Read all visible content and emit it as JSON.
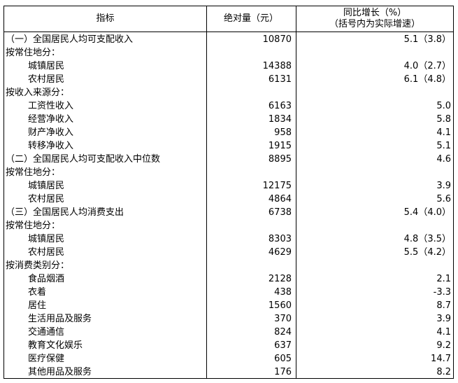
{
  "header": {
    "indicator": "指标",
    "absolute": "绝对量（元）",
    "growth": "同比增长（%）",
    "growth_note": "（括号内为实际增速）"
  },
  "table": {
    "rows": [
      [
        "（一）全国居民人均可支配收入",
        "10870",
        "5.1（3.8）"
      ],
      [
        "按常住地分："
      ],
      [
        "城镇居民",
        "14388",
        "4.0（2.7）"
      ],
      [
        "农村居民",
        "6131",
        "6.1（4.8）"
      ],
      [
        "按收入来源分："
      ],
      [
        "工资性收入",
        "6163",
        "5.0"
      ],
      [
        "经营净收入",
        "1834",
        "5.8"
      ],
      [
        "财产净收入",
        "958",
        "4.1"
      ],
      [
        "转移净收入",
        "1915",
        "5.1"
      ],
      [
        "（二）全国居民人均可支配收入中位数",
        "8895",
        "4.6"
      ],
      [
        "按常住地分："
      ],
      [
        "城镇居民",
        "12175",
        "3.9"
      ],
      [
        "农村居民",
        "4864",
        "5.6"
      ],
      [
        "（三）全国居民人均消费支出",
        "6738",
        "5.4（4.0）"
      ],
      [
        "按常住地分："
      ],
      [
        "城镇居民",
        "8303",
        "4.8（3.5）"
      ],
      [
        "农村居民",
        "4629",
        "5.5（4.2）"
      ],
      [
        "按消费类别分："
      ],
      [
        "食品烟酒",
        "2128",
        "2.1"
      ],
      [
        "衣着",
        "438",
        "-3.3"
      ],
      [
        "居住",
        "1560",
        "8.7"
      ],
      [
        "生活用品及服务",
        "370",
        "3.9"
      ],
      [
        "交通通信",
        "824",
        "4.1"
      ],
      [
        "教育文化娱乐",
        "637",
        "9.2"
      ],
      [
        "医疗保健",
        "605",
        "14.7"
      ],
      [
        "其他用品及服务",
        "176",
        "8.2"
      ]
    ]
  }
}
